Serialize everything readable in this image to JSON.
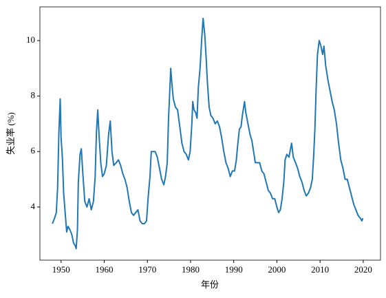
{
  "chart_data": {
    "type": "line",
    "xlabel": "年份",
    "ylabel": "失业率 (%)",
    "x": [
      1948.0,
      1948.5,
      1948.9,
      1949.2,
      1949.5,
      1949.8,
      1950.0,
      1950.3,
      1950.6,
      1951.0,
      1951.3,
      1951.6,
      1952.0,
      1952.5,
      1952.9,
      1953.3,
      1953.5,
      1953.8,
      1954.0,
      1954.4,
      1954.7,
      1955.0,
      1955.5,
      1956.0,
      1956.5,
      1957.0,
      1957.5,
      1957.9,
      1958.2,
      1958.5,
      1958.8,
      1959.2,
      1959.6,
      1960.0,
      1960.5,
      1961.0,
      1961.4,
      1961.8,
      1962.2,
      1962.8,
      1963.3,
      1963.8,
      1964.3,
      1964.8,
      1965.3,
      1965.8,
      1966.3,
      1966.8,
      1967.3,
      1967.8,
      1968.3,
      1968.8,
      1969.3,
      1969.8,
      1970.2,
      1970.6,
      1970.9,
      1971.3,
      1971.8,
      1972.3,
      1972.8,
      1973.3,
      1973.8,
      1974.2,
      1974.6,
      1974.9,
      1975.3,
      1975.4,
      1975.7,
      1976.0,
      1976.5,
      1977.0,
      1977.5,
      1978.0,
      1978.5,
      1979.0,
      1979.5,
      1979.9,
      1980.3,
      1980.5,
      1980.8,
      1981.2,
      1981.5,
      1981.8,
      1982.2,
      1982.6,
      1982.9,
      1983.3,
      1983.6,
      1983.9,
      1984.3,
      1984.7,
      1985.2,
      1985.7,
      1986.2,
      1986.7,
      1987.2,
      1987.7,
      1988.2,
      1988.7,
      1989.2,
      1989.7,
      1990.2,
      1990.6,
      1990.9,
      1991.3,
      1991.7,
      1992.0,
      1992.5,
      1992.8,
      1993.3,
      1993.8,
      1994.2,
      1994.6,
      1995.0,
      1995.5,
      1996.0,
      1996.5,
      1997.0,
      1997.5,
      1998.0,
      1998.5,
      1999.0,
      1999.5,
      2000.0,
      2000.4,
      2000.8,
      2001.2,
      2001.6,
      2001.9,
      2002.3,
      2002.8,
      2003.4,
      2003.8,
      2004.3,
      2004.8,
      2005.3,
      2005.8,
      2006.3,
      2006.8,
      2007.3,
      2007.8,
      2008.2,
      2008.5,
      2008.8,
      2009.1,
      2009.4,
      2009.8,
      2010.2,
      2010.6,
      2010.9,
      2011.3,
      2011.8,
      2012.3,
      2012.8,
      2013.3,
      2013.8,
      2014.3,
      2014.8,
      2015.3,
      2015.8,
      2016.3,
      2016.8,
      2017.3,
      2017.8,
      2018.3,
      2018.8,
      2019.3,
      2019.7,
      2019.9
    ],
    "series": [
      {
        "color": "#1f77b4",
        "values": [
          3.4,
          3.6,
          3.8,
          4.7,
          6.7,
          7.9,
          6.5,
          5.8,
          4.5,
          3.7,
          3.1,
          3.3,
          3.2,
          3.0,
          2.7,
          2.6,
          2.5,
          3.2,
          4.9,
          5.9,
          6.1,
          5.3,
          4.2,
          4.0,
          4.3,
          3.9,
          4.2,
          5.1,
          6.7,
          7.5,
          6.6,
          5.6,
          5.1,
          5.2,
          5.5,
          6.6,
          7.1,
          6.0,
          5.5,
          5.6,
          5.7,
          5.5,
          5.2,
          5.0,
          4.7,
          4.2,
          3.8,
          3.7,
          3.8,
          3.9,
          3.5,
          3.4,
          3.4,
          3.5,
          4.4,
          5.1,
          6.0,
          6.0,
          6.0,
          5.8,
          5.4,
          5.0,
          4.8,
          5.1,
          5.6,
          7.2,
          8.6,
          9.0,
          8.4,
          7.9,
          7.6,
          7.5,
          6.9,
          6.3,
          6.0,
          5.9,
          5.7,
          6.0,
          7.0,
          7.8,
          7.5,
          7.4,
          7.2,
          8.3,
          9.0,
          10.1,
          10.8,
          10.2,
          9.4,
          8.5,
          7.6,
          7.3,
          7.2,
          7.0,
          7.1,
          6.9,
          6.5,
          6.0,
          5.6,
          5.4,
          5.1,
          5.3,
          5.3,
          5.7,
          6.2,
          6.8,
          6.9,
          7.3,
          7.8,
          7.4,
          7.0,
          6.6,
          6.4,
          6.0,
          5.6,
          5.6,
          5.6,
          5.3,
          5.2,
          4.9,
          4.6,
          4.5,
          4.3,
          4.3,
          4.0,
          3.8,
          3.9,
          4.3,
          4.9,
          5.7,
          5.9,
          5.8,
          6.3,
          5.8,
          5.6,
          5.4,
          5.1,
          4.9,
          4.6,
          4.4,
          4.5,
          4.7,
          5.0,
          5.8,
          6.8,
          8.3,
          9.5,
          10.0,
          9.8,
          9.5,
          9.8,
          9.1,
          8.6,
          8.2,
          7.8,
          7.5,
          7.0,
          6.3,
          5.7,
          5.4,
          5.0,
          5.0,
          4.7,
          4.4,
          4.1,
          3.9,
          3.7,
          3.6,
          3.5,
          3.6
        ]
      }
    ],
    "xlim": [
      1945.1,
      2024.0
    ],
    "xticks": [
      1950,
      1960,
      1970,
      1980,
      1990,
      2000,
      2010,
      2020
    ],
    "ylim": [
      2.085,
      11.215
    ],
    "yticks": [
      4,
      6,
      8,
      10
    ],
    "grid": false
  }
}
